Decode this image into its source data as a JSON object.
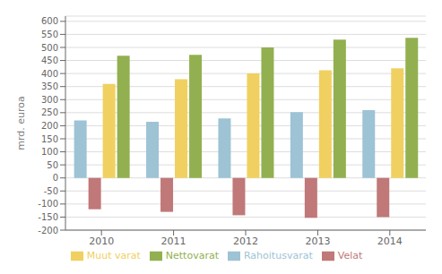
{
  "chart_data": {
    "type": "bar",
    "categories": [
      "2010",
      "2011",
      "2012",
      "2013",
      "2014"
    ],
    "series": [
      {
        "name": "Rahoitusvarat",
        "color": "#9dc3d4",
        "values": [
          220,
          215,
          228,
          252,
          260
        ]
      },
      {
        "name": "Velat",
        "color": "#c07878",
        "values": [
          -120,
          -130,
          -143,
          -153,
          -150
        ]
      },
      {
        "name": "Muut varat",
        "color": "#f0d060",
        "values": [
          360,
          378,
          400,
          412,
          420
        ]
      },
      {
        "name": "Nettovarat",
        "color": "#92b050",
        "values": [
          468,
          472,
          500,
          530,
          537
        ]
      }
    ],
    "ylabel": "mrd. euroa",
    "ylim": [
      -200,
      620
    ],
    "yticks": [
      -200,
      -150,
      -100,
      -50,
      0,
      50,
      100,
      150,
      200,
      250,
      300,
      350,
      400,
      450,
      500,
      550,
      600
    ],
    "grid": true,
    "legend": "bottom"
  }
}
